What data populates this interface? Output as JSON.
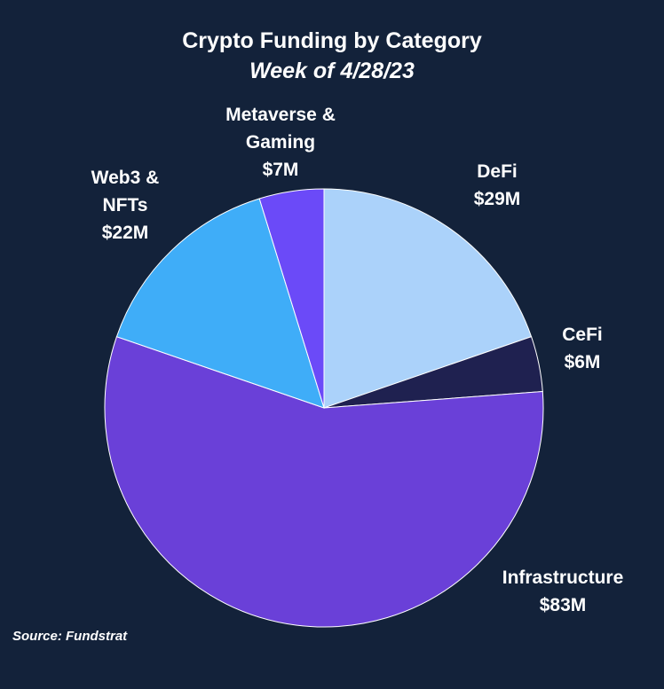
{
  "chart_data": {
    "type": "pie",
    "title": "Crypto Funding by Category",
    "subtitle": "Week of 4/28/23",
    "slices": [
      {
        "label_lines": [
          "DeFi",
          "$29M"
        ],
        "category": "DeFi",
        "value": 29,
        "color": "#abd2fa"
      },
      {
        "label_lines": [
          "CeFi",
          "$6M"
        ],
        "category": "CeFi",
        "value": 6,
        "color": "#1f2150"
      },
      {
        "label_lines": [
          "Infrastructure",
          "$83M"
        ],
        "category": "Infrastructure",
        "value": 83,
        "color": "#6a40d8"
      },
      {
        "label_lines": [
          "Web3 &",
          "NFTs",
          "$22M"
        ],
        "category": "Web3 & NFTs",
        "value": 22,
        "color": "#3fadf8"
      },
      {
        "label_lines": [
          "Metaverse &",
          "Gaming",
          "$7M"
        ],
        "category": "Metaverse & Gaming",
        "value": 7,
        "color": "#6b4af8"
      }
    ],
    "unit": "$M",
    "start_direction": "top",
    "rotation": "clockwise"
  },
  "source": "Source: Fundstrat"
}
